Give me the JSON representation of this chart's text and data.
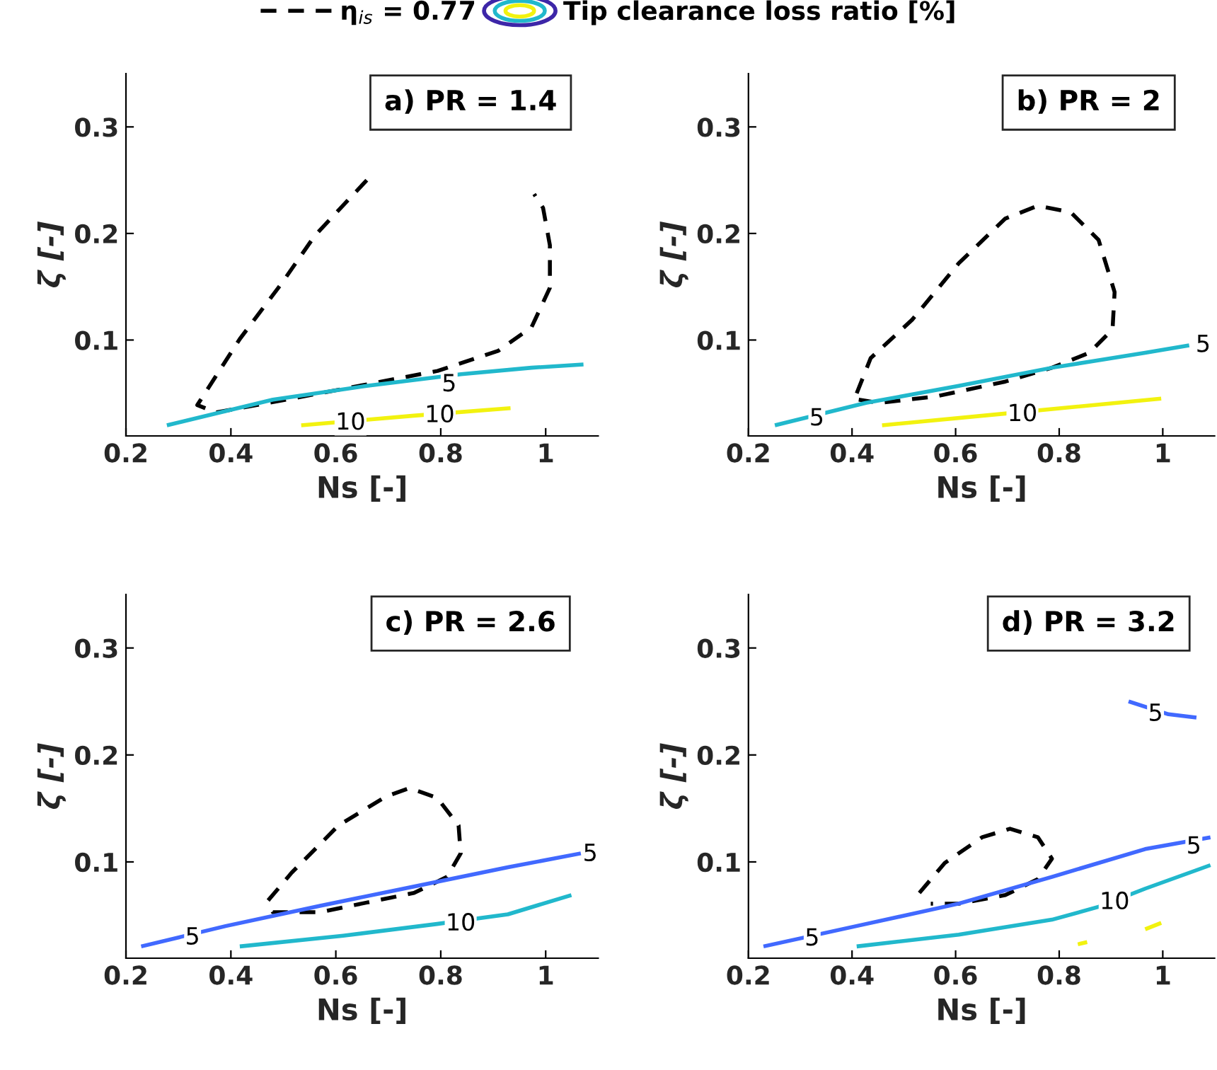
{
  "chart_data": [
    {
      "type": "line",
      "title": "a) PR = 1.4",
      "xlabel": "Ns [-]",
      "ylabel": "ζ [-]",
      "xlim": [
        0.2,
        1.1
      ],
      "ylim": [
        0.01,
        0.35
      ],
      "xticks": [
        0.2,
        0.4,
        0.6,
        0.8,
        1
      ],
      "yticks": [
        0.1,
        0.2,
        0.3
      ],
      "grid": false,
      "legend": "top",
      "marker": "none",
      "series": [
        {
          "name": "η$_{is}$ = 0.77",
          "color": "#000000",
          "line_style": "dashed",
          "x": [
            0.659,
            0.56,
            0.498,
            0.417,
            0.336,
            0.372,
            0.57,
            0.794,
            0.91,
            0.973,
            1.008,
            1.008,
            0.995,
            0.978
          ],
          "values": [
            0.25,
            0.198,
            0.154,
            0.101,
            0.039,
            0.032,
            0.05,
            0.071,
            0.09,
            0.112,
            0.149,
            0.189,
            0.224,
            0.237
          ]
        },
        {
          "name": "Tip clearance loss ratio [%]",
          "color": "#21b8cc",
          "line_style": "solid",
          "x": [
            0.278,
            0.48,
            0.659,
            0.839,
            0.973,
            1.072
          ],
          "values": [
            0.02,
            0.044,
            0.057,
            0.068,
            0.074,
            0.077
          ]
        },
        {
          "color": "#f2f20f",
          "line_style": "solid",
          "x": [
            0.534,
            0.749,
            0.933
          ],
          "values": [
            0.02,
            0.029,
            0.036
          ]
        }
      ],
      "annotations": [
        {
          "text": "5",
          "x": 0.816,
          "y": 0.058
        },
        {
          "text": "10",
          "x": 0.628,
          "y": 0.022
        },
        {
          "text": "10",
          "x": 0.798,
          "y": 0.029
        }
      ]
    },
    {
      "type": "line",
      "title": "b) PR = 2",
      "xlabel": "Ns [-]",
      "ylabel": "ζ [-]",
      "xlim": [
        0.2,
        1.1
      ],
      "ylim": [
        0.01,
        0.35
      ],
      "xticks": [
        0.2,
        0.4,
        0.6,
        0.8,
        1
      ],
      "yticks": [
        0.1,
        0.2,
        0.3
      ],
      "grid": false,
      "marker": "none",
      "series": [
        {
          "color": "#000000",
          "line_style": "dashed",
          "x": [
            0.409,
            0.436,
            0.516,
            0.606,
            0.696,
            0.759,
            0.822,
            0.876,
            0.907,
            0.903,
            0.858,
            0.786,
            0.696,
            0.561,
            0.453,
            0.413
          ],
          "values": [
            0.05,
            0.083,
            0.119,
            0.172,
            0.214,
            0.226,
            0.22,
            0.194,
            0.145,
            0.11,
            0.088,
            0.074,
            0.061,
            0.047,
            0.041,
            0.044
          ]
        },
        {
          "color": "#21b8cc",
          "line_style": "solid",
          "x": [
            0.251,
            0.427,
            0.606,
            0.786,
            0.966,
            1.051
          ],
          "values": [
            0.02,
            0.041,
            0.057,
            0.074,
            0.088,
            0.095
          ]
        },
        {
          "color": "#f2f20f",
          "line_style": "solid",
          "x": [
            0.458,
            0.696,
            0.997
          ],
          "values": [
            0.02,
            0.031,
            0.045
          ]
        }
      ],
      "annotations": [
        {
          "text": "5",
          "x": 0.332,
          "y": 0.026
        },
        {
          "text": "5",
          "x": 1.078,
          "y": 0.095
        },
        {
          "text": "10",
          "x": 0.729,
          "y": 0.03
        }
      ]
    },
    {
      "type": "line",
      "title": "c) PR = 2.6",
      "xlabel": "Ns [-]",
      "ylabel": "ζ [-]",
      "xlim": [
        0.2,
        1.1
      ],
      "ylim": [
        0.01,
        0.35
      ],
      "xticks": [
        0.2,
        0.4,
        0.6,
        0.8,
        1
      ],
      "yticks": [
        0.1,
        0.2,
        0.3
      ],
      "grid": false,
      "marker": "none",
      "series": [
        {
          "color": "#000000",
          "line_style": "dashed",
          "x": [
            0.471,
            0.516,
            0.605,
            0.695,
            0.74,
            0.793,
            0.834,
            0.838,
            0.812,
            0.749,
            0.659,
            0.57,
            0.48,
            0.471
          ],
          "values": [
            0.064,
            0.09,
            0.134,
            0.161,
            0.169,
            0.16,
            0.134,
            0.108,
            0.086,
            0.071,
            0.062,
            0.053,
            0.053,
            0.06
          ]
        },
        {
          "color": "#4169ff",
          "line_style": "solid",
          "x": [
            0.229,
            0.39,
            0.57,
            0.749,
            0.928,
            1.067
          ],
          "values": [
            0.021,
            0.04,
            0.059,
            0.077,
            0.095,
            0.108
          ]
        },
        {
          "color": "#21b8cc",
          "line_style": "solid",
          "x": [
            0.417,
            0.614,
            0.793,
            0.928,
            1.049
          ],
          "values": [
            0.021,
            0.031,
            0.042,
            0.051,
            0.069
          ]
        }
      ],
      "annotations": [
        {
          "text": "5",
          "x": 0.327,
          "y": 0.029
        },
        {
          "text": "5",
          "x": 1.085,
          "y": 0.107
        },
        {
          "text": "10",
          "x": 0.838,
          "y": 0.042
        }
      ]
    },
    {
      "type": "line",
      "title": "d) PR = 3.2",
      "xlabel": "Ns [-]",
      "ylabel": "ζ [-]",
      "xlim": [
        0.2,
        1.1
      ],
      "ylim": [
        0.01,
        0.35
      ],
      "xticks": [
        0.2,
        0.4,
        0.6,
        0.8,
        1
      ],
      "yticks": [
        0.1,
        0.2,
        0.3
      ],
      "grid": false,
      "marker": "none",
      "series": [
        {
          "color": "#000000",
          "line_style": "dashed",
          "x": [
            0.53,
            0.579,
            0.651,
            0.705,
            0.759,
            0.786,
            0.759,
            0.696,
            0.606,
            0.552
          ],
          "values": [
            0.071,
            0.099,
            0.123,
            0.131,
            0.123,
            0.103,
            0.084,
            0.069,
            0.061,
            0.061
          ]
        },
        {
          "color": "#4169ff",
          "line_style": "solid",
          "x": [
            0.229,
            0.427,
            0.606,
            0.786,
            0.966,
            1.092
          ],
          "values": [
            0.021,
            0.042,
            0.061,
            0.086,
            0.112,
            0.123
          ]
        },
        {
          "color": "#4169ff",
          "line_style": "solid",
          "x": [
            0.934,
            1.011,
            1.065
          ],
          "values": [
            0.25,
            0.238,
            0.235
          ]
        },
        {
          "color": "#21b8cc",
          "line_style": "solid",
          "x": [
            0.409,
            0.606,
            0.786,
            0.876,
            0.966,
            1.092
          ],
          "values": [
            0.021,
            0.032,
            0.046,
            0.058,
            0.075,
            0.097
          ]
        },
        {
          "color": "#f2f20f",
          "line_style": "solid",
          "x": [
            0.836,
            0.854,
            null,
            0.966,
            0.997
          ],
          "values": [
            0.023,
            0.025,
            null,
            0.037,
            0.043
          ]
        }
      ],
      "annotations": [
        {
          "text": "5",
          "x": 0.323,
          "y": 0.028
        },
        {
          "text": "5",
          "x": 1.06,
          "y": 0.114
        },
        {
          "text": "5",
          "x": 0.986,
          "y": 0.238
        },
        {
          "text": "10",
          "x": 0.907,
          "y": 0.062
        }
      ]
    }
  ]
}
